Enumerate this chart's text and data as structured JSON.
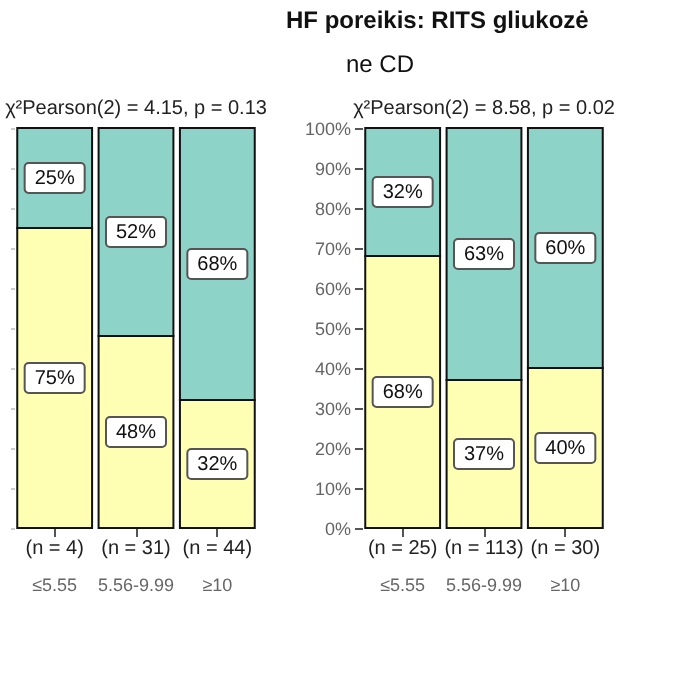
{
  "chart_data": [
    {
      "type": "bar",
      "stacked": true,
      "categories": [
        "≤5.55",
        "5.56-9.99",
        "≥10"
      ],
      "series": [
        {
          "color": "#ffffb3",
          "values": [
            75,
            48,
            32
          ],
          "value_labels": [
            "75%",
            "48%",
            "32%"
          ]
        },
        {
          "color": "#8dd3c7",
          "values": [
            25,
            52,
            68
          ],
          "value_labels": [
            "25%",
            "52%",
            "68%"
          ]
        }
      ],
      "ylim": [
        0,
        100
      ],
      "yticks": [
        {
          "value": 0,
          "label": null
        },
        {
          "value": 10,
          "label": null
        },
        {
          "value": 20,
          "label": null
        },
        {
          "value": 30,
          "label": null
        },
        {
          "value": 40,
          "label": null
        },
        {
          "value": 50,
          "label": null
        },
        {
          "value": 60,
          "label": null
        },
        {
          "value": 70,
          "label": null
        },
        {
          "value": 80,
          "label": null
        },
        {
          "value": 90,
          "label": null
        },
        {
          "value": 100,
          "label": null
        }
      ],
      "tick_labels": "x",
      "annotations": [
        "χ²Pearson(2) = 4.15, p = 0.13",
        "(n = 4)",
        "(n = 31)",
        "(n = 44)"
      ]
    },
    {
      "type": "bar",
      "stacked": true,
      "title": "HF poreikis: RITS gliukozė",
      "subtitle": "ne CD",
      "categories": [
        "≤5.55",
        "5.56-9.99",
        "≥10"
      ],
      "series": [
        {
          "color": "#ffffb3",
          "values": [
            68,
            37,
            40
          ],
          "value_labels": [
            "68%",
            "37%",
            "40%"
          ]
        },
        {
          "color": "#8dd3c7",
          "values": [
            32,
            63,
            60
          ],
          "value_labels": [
            "32%",
            "63%",
            "60%"
          ]
        }
      ],
      "ylim": [
        0,
        100
      ],
      "yticks": [
        {
          "value": 0,
          "label": "0%"
        },
        {
          "value": 10,
          "label": "10%"
        },
        {
          "value": 20,
          "label": "20%"
        },
        {
          "value": 30,
          "label": "30%"
        },
        {
          "value": 40,
          "label": "40%"
        },
        {
          "value": 50,
          "label": "50%"
        },
        {
          "value": 60,
          "label": "60%"
        },
        {
          "value": 70,
          "label": "70%"
        },
        {
          "value": 80,
          "label": "80%"
        },
        {
          "value": 90,
          "label": "90%"
        },
        {
          "value": 100,
          "label": "100%"
        }
      ],
      "annotations": [
        "χ²Pearson(2) = 8.58, p = 0.02",
        "(n = 25)",
        "(n = 113)",
        "(n = 30)"
      ]
    }
  ]
}
